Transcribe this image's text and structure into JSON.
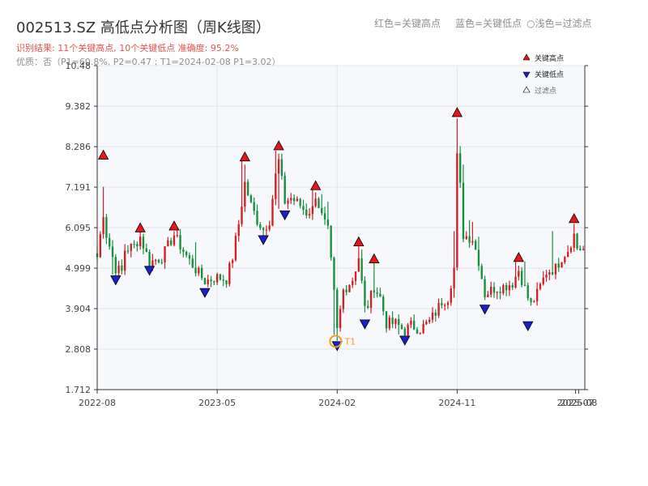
{
  "chart_data": {
    "type": "candlestick",
    "title": "002513.SZ 高低点分析图（周K线图）",
    "subtitle_result": "识别结果: 11个关键高点, 10个关键低点  准确度: 95.2%",
    "subtitle_quality": "优质：否（P1=60.8%, P2=0.47 ; T1=2024-02-08 P1=3.02）",
    "top_legend": [
      "红色=关键高点",
      "蓝色=关键低点",
      "○浅色=过滤点"
    ],
    "legend": [
      "关键高点",
      "关键低点",
      "过滤点"
    ],
    "y_ticks": [
      "1.712",
      "2.808",
      "3.904",
      "4.999",
      "6.095",
      "7.191",
      "8.286",
      "9.382",
      "10.48"
    ],
    "y_range": [
      1.712,
      10.48
    ],
    "x_ticks": [
      {
        "t": 0,
        "label": "2022-08"
      },
      {
        "t": 39,
        "label": "2023-05"
      },
      {
        "t": 78,
        "label": "2024-02"
      },
      {
        "t": 117,
        "label": "2024-11"
      },
      {
        "t": 155.5,
        "label": "2025-07"
      },
      {
        "t": 156.5,
        "label": "2025-08"
      }
    ],
    "x_range": [
      0,
      158.5
    ],
    "t1_label": "T1",
    "t1_point": {
      "t": 77.5,
      "price": 3.02
    },
    "key_highs": [
      {
        "t": 2,
        "price": 7.95
      },
      {
        "t": 14,
        "price": 5.98
      },
      {
        "t": 25,
        "price": 6.03
      },
      {
        "t": 48,
        "price": 7.9
      },
      {
        "t": 59,
        "price": 8.2
      },
      {
        "t": 71,
        "price": 7.12
      },
      {
        "t": 85,
        "price": 5.6
      },
      {
        "t": 90,
        "price": 5.14
      },
      {
        "t": 117,
        "price": 9.1
      },
      {
        "t": 137,
        "price": 5.18
      },
      {
        "t": 155,
        "price": 6.23
      }
    ],
    "key_lows": [
      {
        "t": 6,
        "price": 4.79
      },
      {
        "t": 17,
        "price": 5.05
      },
      {
        "t": 35,
        "price": 4.45
      },
      {
        "t": 54,
        "price": 5.88
      },
      {
        "t": 61,
        "price": 6.55
      },
      {
        "t": 78,
        "price": 3.01
      },
      {
        "t": 87,
        "price": 3.6
      },
      {
        "t": 100,
        "price": 3.16
      },
      {
        "t": 126,
        "price": 4.0
      },
      {
        "t": 140,
        "price": 3.55
      }
    ],
    "anchors": [
      [
        0,
        5.3
      ],
      [
        2,
        6.5
      ],
      [
        3,
        5.9
      ],
      [
        6,
        5.0
      ],
      [
        8,
        4.9
      ],
      [
        9,
        5.5
      ],
      [
        12,
        5.6
      ],
      [
        14,
        5.85
      ],
      [
        17,
        5.15
      ],
      [
        21,
        5.3
      ],
      [
        25,
        5.9
      ],
      [
        27,
        5.6
      ],
      [
        30,
        5.2
      ],
      [
        33,
        4.85
      ],
      [
        35,
        4.65
      ],
      [
        39,
        4.75
      ],
      [
        42,
        4.7
      ],
      [
        44,
        5.3
      ],
      [
        46,
        6.2
      ],
      [
        48,
        7.3
      ],
      [
        50,
        6.7
      ],
      [
        52,
        6.3
      ],
      [
        54,
        6.05
      ],
      [
        56,
        6.3
      ],
      [
        58,
        7.5
      ],
      [
        59,
        7.9
      ],
      [
        61,
        6.8
      ],
      [
        63,
        6.9
      ],
      [
        66,
        6.7
      ],
      [
        68,
        6.5
      ],
      [
        70,
        6.6
      ],
      [
        71,
        7.0
      ],
      [
        73,
        6.4
      ],
      [
        75,
        6.0
      ],
      [
        77,
        4.3
      ],
      [
        78,
        3.3
      ],
      [
        80,
        4.4
      ],
      [
        83,
        4.7
      ],
      [
        85,
        5.3
      ],
      [
        87,
        3.9
      ],
      [
        88,
        4.0
      ],
      [
        90,
        4.5
      ],
      [
        92,
        4.2
      ],
      [
        94,
        3.5
      ],
      [
        97,
        3.5
      ],
      [
        100,
        3.3
      ],
      [
        102,
        3.45
      ],
      [
        105,
        3.35
      ],
      [
        108,
        3.55
      ],
      [
        110,
        3.8
      ],
      [
        112,
        4.1
      ],
      [
        114,
        4.2
      ],
      [
        116,
        5.0
      ],
      [
        117,
        8.0
      ],
      [
        118,
        7.2
      ],
      [
        119,
        5.9
      ],
      [
        122,
        5.8
      ],
      [
        124,
        5.2
      ],
      [
        126,
        4.3
      ],
      [
        129,
        4.45
      ],
      [
        132,
        4.5
      ],
      [
        135,
        4.6
      ],
      [
        137,
        4.95
      ],
      [
        140,
        4.2
      ],
      [
        141,
        4.0
      ],
      [
        143,
        4.3
      ],
      [
        146,
        4.9
      ],
      [
        149,
        5.0
      ],
      [
        151,
        5.3
      ],
      [
        153,
        5.5
      ],
      [
        155,
        5.9
      ],
      [
        156,
        5.55
      ],
      [
        158,
        5.5
      ]
    ],
    "spikes": [
      [
        2,
        7.2,
        null
      ],
      [
        5,
        5.0,
        4.82
      ],
      [
        14,
        5.95,
        null
      ],
      [
        25,
        6.0,
        null
      ],
      [
        32,
        5.7,
        null
      ],
      [
        47,
        7.9,
        6.5
      ],
      [
        48,
        7.8,
        null
      ],
      [
        58,
        8.18,
        6.7
      ],
      [
        59,
        8.1,
        6.6
      ],
      [
        60,
        8.1,
        null
      ],
      [
        70,
        7.15,
        null
      ],
      [
        71,
        7.05,
        null
      ],
      [
        73,
        7.0,
        null
      ],
      [
        75,
        6.8,
        null
      ],
      [
        77,
        5.0,
        3.2
      ],
      [
        78,
        3.5,
        3.03
      ],
      [
        85,
        5.6,
        null
      ],
      [
        86,
        5.5,
        null
      ],
      [
        90,
        5.15,
        null
      ],
      [
        98,
        3.6,
        3.2
      ],
      [
        106,
        3.6,
        null
      ],
      [
        116,
        6.0,
        4.2
      ],
      [
        117,
        9.05,
        6.0
      ],
      [
        118,
        8.3,
        null
      ],
      [
        119,
        7.8,
        5.7
      ],
      [
        120,
        6.0,
        null
      ],
      [
        121,
        6.3,
        null
      ],
      [
        122,
        6.25,
        null
      ],
      [
        124,
        5.85,
        null
      ],
      [
        136,
        5.2,
        null
      ],
      [
        139,
        5.18,
        null
      ],
      [
        148,
        6.0,
        null
      ],
      [
        154,
        5.6,
        null
      ],
      [
        155,
        6.2,
        null
      ]
    ],
    "colors": {
      "up": "#d21f26",
      "down": "#16903e",
      "high_marker": "#e8151a",
      "low_marker": "#1a1fd0",
      "t1_ring": "#f0a020",
      "t1_label": "#f0a020",
      "plot_bg": "#f6f8fb",
      "grid": "#e1e5eb"
    },
    "grid": true,
    "legend_position": "top-right"
  }
}
